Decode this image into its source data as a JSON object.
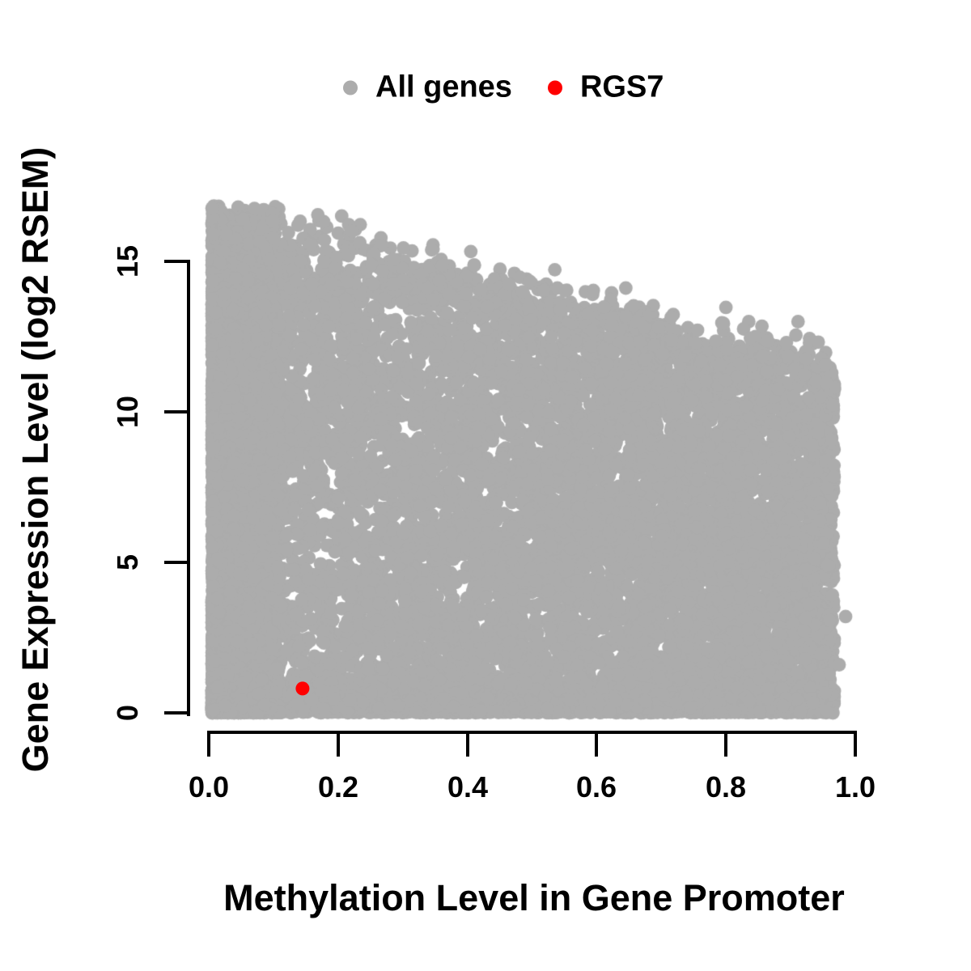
{
  "figure": {
    "background": "#FFFFFF",
    "title": ""
  },
  "legend": {
    "position": "top-center",
    "items": [
      {
        "label": "All genes",
        "color": "#ACACAC"
      },
      {
        "label": "RGS7",
        "color": "#FF0000"
      }
    ]
  },
  "chart_data": {
    "type": "scatter",
    "title": "",
    "xlabel": "Methylation Level in Gene Promoter",
    "ylabel": "Gene Expression Level (log2 RSEM)",
    "xlim": [
      0,
      1
    ],
    "ylim": [
      0,
      16.85
    ],
    "x_tick_values": [
      0.0,
      0.2,
      0.4,
      0.6,
      0.8,
      1.0
    ],
    "x_tick_labels": [
      "0.0",
      "0.2",
      "0.4",
      "0.6",
      "0.8",
      "1.0"
    ],
    "y_tick_values": [
      0,
      5,
      10,
      15
    ],
    "y_tick_labels": [
      "0",
      "5",
      "10",
      "15"
    ],
    "grid": false,
    "axis_color": "#000000",
    "legend_position": "top",
    "series": [
      {
        "name": "All genes",
        "color": "#ACACAC",
        "marker": "filled-circle",
        "marker_radius_px": 8.4,
        "representation": "dense cloud of thousands of overlapping points; individual values not enumerable, reproduced procedurally",
        "n_points": 16000,
        "x_range": [
          0.005,
          0.968
        ],
        "y_range": [
          0,
          16.85
        ],
        "upper_envelope": {
          "type": "linear",
          "y_at_x0": 16.9,
          "y_at_x1": 11.4,
          "noise_sd": 0.45
        },
        "density_features": {
          "dense_left_column_below_x": 0.11,
          "left_column_weight": 0.3,
          "dense_bottom_band_below_y": 1.0,
          "bottom_band_weight": 0.26
        },
        "generator_seed": 7,
        "outlier_points": [
          [
            0.985,
            3.2
          ],
          [
            0.975,
            1.6
          ],
          [
            0.957,
            4.9
          ]
        ]
      },
      {
        "name": "RGS7",
        "color": "#FF0000",
        "marker": "filled-circle",
        "marker_radius_px": 8.6,
        "points": [
          [
            0.145,
            0.8
          ]
        ]
      }
    ]
  }
}
